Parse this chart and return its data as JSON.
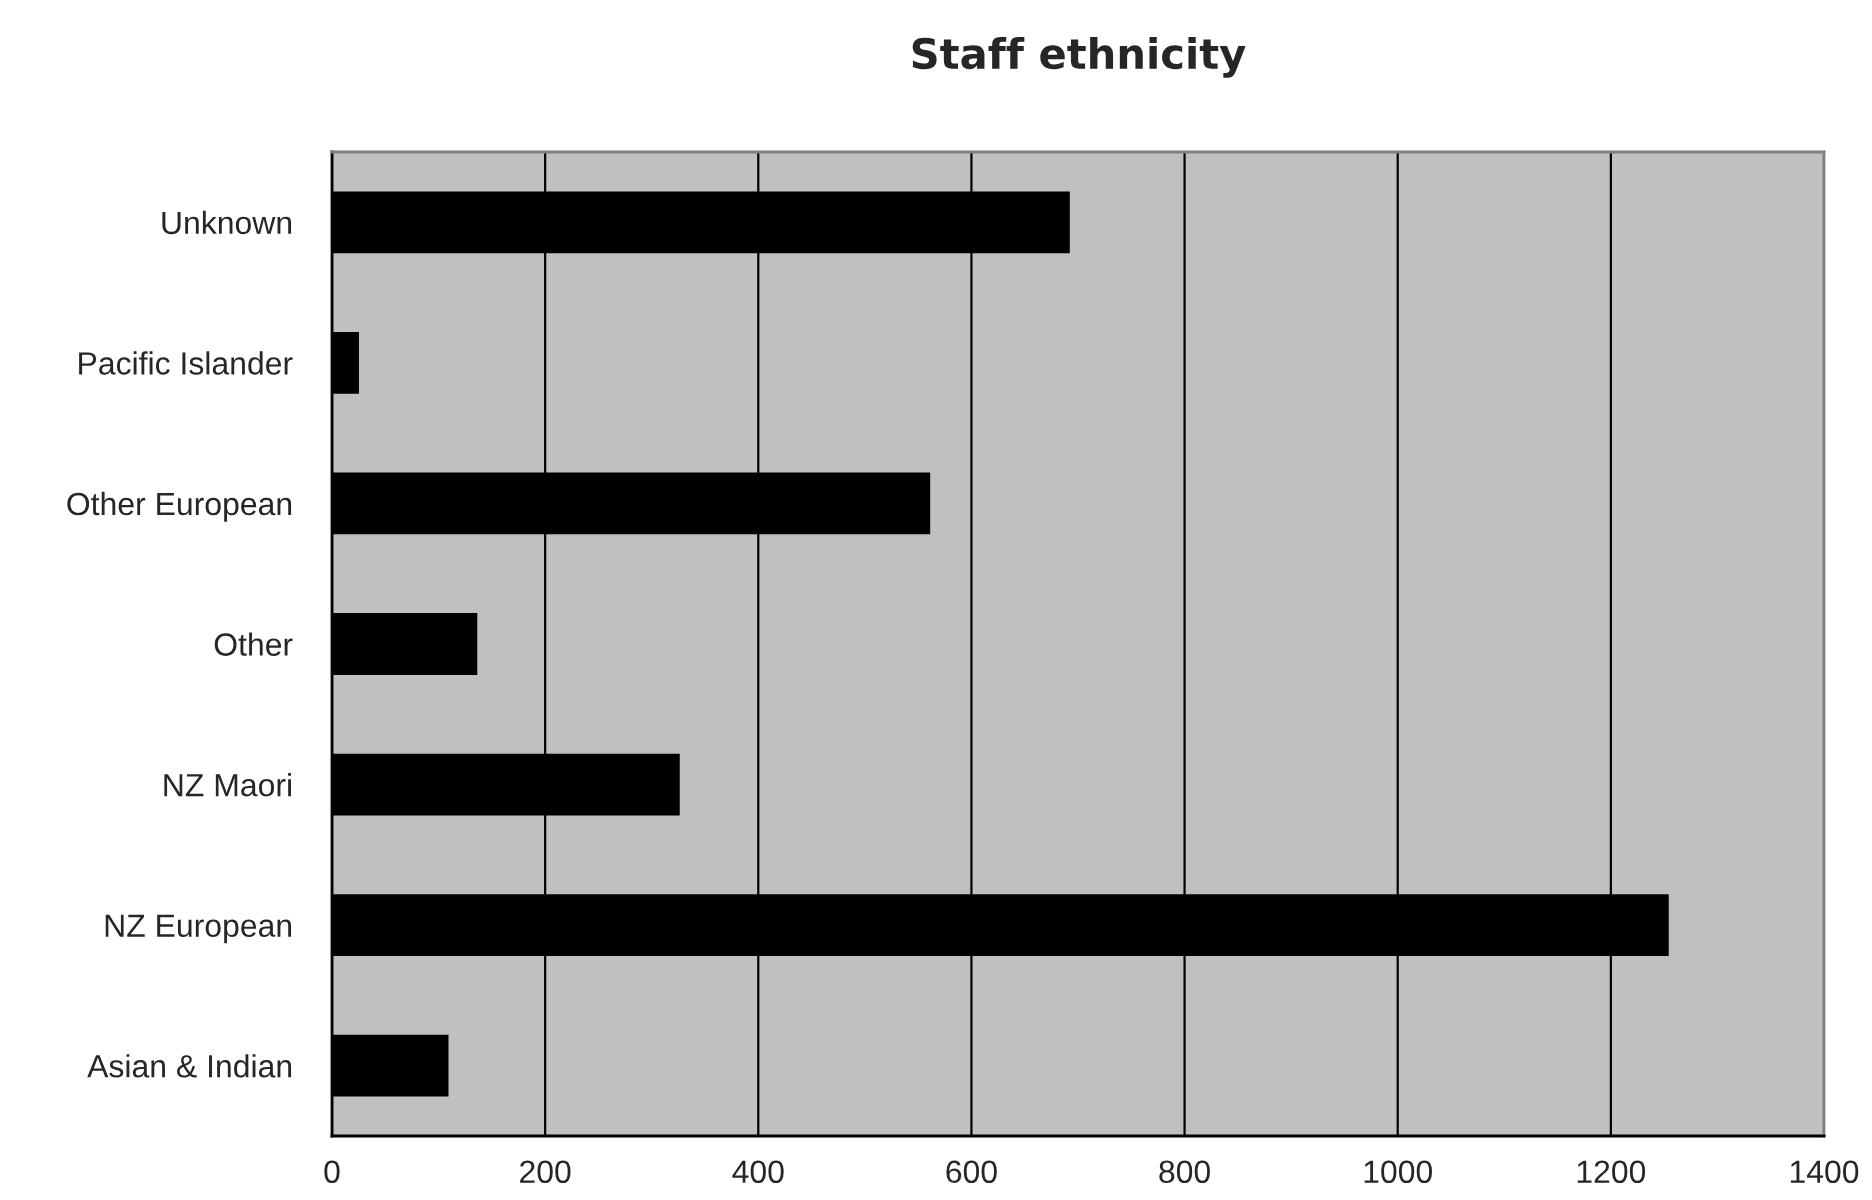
{
  "chart_data": {
    "type": "bar",
    "orientation": "horizontal",
    "title": "Staff ethnicity",
    "categories": [
      "Unknown",
      "Pacific Islander",
      "Other European",
      "Other",
      "NZ Maori",
      "NZ European",
      "Asian & Indian"
    ],
    "values": [
      691,
      24,
      560,
      135,
      325,
      1253,
      108
    ],
    "color": "#000000",
    "xlim": [
      0,
      1400
    ],
    "xticks": [
      0,
      200,
      400,
      600,
      800,
      1000,
      1200,
      1400
    ],
    "grid": "x",
    "legend": false
  }
}
